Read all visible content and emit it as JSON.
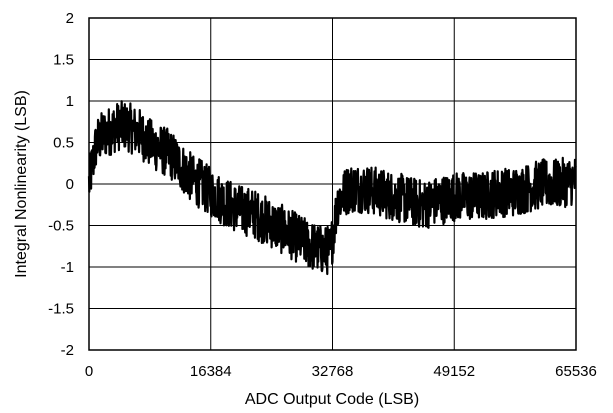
{
  "chart_data": {
    "type": "line",
    "xlabel": "ADC Output Code (LSB)",
    "ylabel": "Integral Nonlinearity (LSB)",
    "xlim": [
      0,
      65536
    ],
    "ylim": [
      -2,
      2
    ],
    "xticks": [
      0,
      16384,
      32768,
      49152,
      65536
    ],
    "yticks": [
      2,
      1.5,
      1,
      0.5,
      0,
      -0.5,
      -1,
      -1.5,
      -2
    ],
    "grid": true,
    "line_color": "#000000",
    "series": [
      {
        "points": [
          [
            0,
            0.0
          ],
          [
            1000,
            0.5
          ],
          [
            2000,
            0.6
          ],
          [
            3000,
            0.65
          ],
          [
            4000,
            0.7
          ],
          [
            5000,
            0.7
          ],
          [
            6000,
            0.65
          ],
          [
            7000,
            0.6
          ],
          [
            8000,
            0.5
          ],
          [
            9000,
            0.45
          ],
          [
            10000,
            0.4
          ],
          [
            11000,
            0.35
          ],
          [
            12000,
            0.25
          ],
          [
            13000,
            0.15
          ],
          [
            14000,
            0.05
          ],
          [
            15000,
            0.0
          ],
          [
            16384,
            -0.1
          ],
          [
            18000,
            -0.2
          ],
          [
            20000,
            -0.3
          ],
          [
            22000,
            -0.35
          ],
          [
            24000,
            -0.45
          ],
          [
            26000,
            -0.55
          ],
          [
            28000,
            -0.65
          ],
          [
            30000,
            -0.75
          ],
          [
            31500,
            -0.8
          ],
          [
            32500,
            -0.8
          ],
          [
            33500,
            -0.2
          ],
          [
            35000,
            -0.05
          ],
          [
            37000,
            -0.05
          ],
          [
            39000,
            -0.1
          ],
          [
            41000,
            -0.15
          ],
          [
            43000,
            -0.2
          ],
          [
            45000,
            -0.25
          ],
          [
            47000,
            -0.2
          ],
          [
            49152,
            -0.15
          ],
          [
            51000,
            -0.15
          ],
          [
            53000,
            -0.15
          ],
          [
            55000,
            -0.1
          ],
          [
            57000,
            -0.1
          ],
          [
            59000,
            -0.05
          ],
          [
            61000,
            0.0
          ],
          [
            63000,
            0.0
          ],
          [
            65536,
            0.05
          ]
        ],
        "band_half_width": 0.3
      }
    ]
  }
}
